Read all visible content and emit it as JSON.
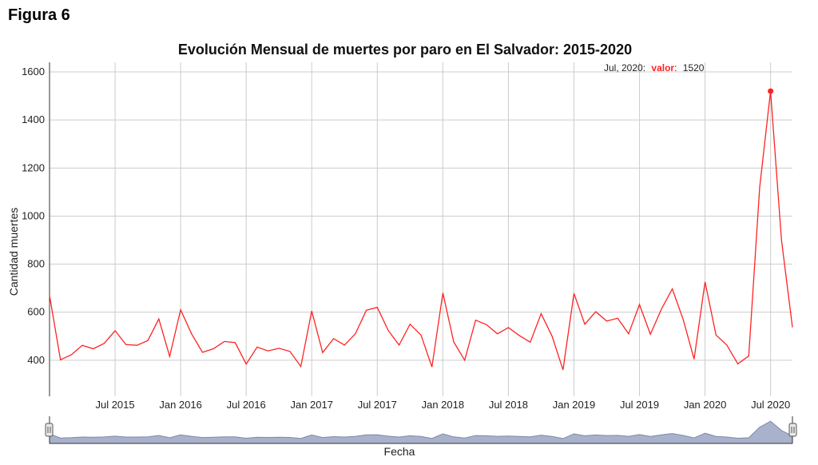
{
  "figure_label": "Figura 6",
  "chart_data": {
    "type": "line",
    "title": "Evolución Mensual de muertes por paro en El Salvador: 2015-2020",
    "xlabel": "Fecha",
    "ylabel": "Cantidad muertes",
    "ylim": [
      250,
      1640
    ],
    "yticks": [
      400,
      600,
      800,
      1000,
      1200,
      1400,
      1600
    ],
    "xlim": [
      "2015-01",
      "2020-12"
    ],
    "xticks": [
      {
        "x": "2015-07",
        "label": "Jul 2015"
      },
      {
        "x": "2016-01",
        "label": "Jan 2016"
      },
      {
        "x": "2016-07",
        "label": "Jul 2016"
      },
      {
        "x": "2017-01",
        "label": "Jan 2017"
      },
      {
        "x": "2017-07",
        "label": "Jul 2017"
      },
      {
        "x": "2018-01",
        "label": "Jan 2018"
      },
      {
        "x": "2018-07",
        "label": "Jul 2018"
      },
      {
        "x": "2019-01",
        "label": "Jan 2019"
      },
      {
        "x": "2019-07",
        "label": "Jul 2019"
      },
      {
        "x": "2020-01",
        "label": "Jan 2020"
      },
      {
        "x": "2020-07",
        "label": "Jul 2020"
      }
    ],
    "grid": true,
    "line_color": "#ff2222",
    "range_selector": true,
    "tooltip": {
      "x": "Jul, 2020",
      "x_label": "Jul, 2020:",
      "series_label": "valor",
      "separator": ":",
      "value": "1520"
    },
    "highlight_index": 66,
    "series": [
      {
        "name": "valor",
        "x": [
          "2015-01",
          "2015-02",
          "2015-03",
          "2015-04",
          "2015-05",
          "2015-06",
          "2015-07",
          "2015-08",
          "2015-09",
          "2015-10",
          "2015-11",
          "2015-12",
          "2016-01",
          "2016-02",
          "2016-03",
          "2016-04",
          "2016-05",
          "2016-06",
          "2016-07",
          "2016-08",
          "2016-09",
          "2016-10",
          "2016-11",
          "2016-12",
          "2017-01",
          "2017-02",
          "2017-03",
          "2017-04",
          "2017-05",
          "2017-06",
          "2017-07",
          "2017-08",
          "2017-09",
          "2017-10",
          "2017-11",
          "2017-12",
          "2018-01",
          "2018-02",
          "2018-03",
          "2018-04",
          "2018-05",
          "2018-06",
          "2018-07",
          "2018-08",
          "2018-09",
          "2018-10",
          "2018-11",
          "2018-12",
          "2019-01",
          "2019-02",
          "2019-03",
          "2019-04",
          "2019-05",
          "2019-06",
          "2019-07",
          "2019-08",
          "2019-09",
          "2019-10",
          "2019-11",
          "2019-12",
          "2020-01",
          "2020-02",
          "2020-03",
          "2020-04",
          "2020-05",
          "2020-06",
          "2020-07",
          "2020-08",
          "2020-09"
        ],
        "values": [
          670,
          402,
          423,
          462,
          448,
          470,
          523,
          465,
          462,
          482,
          572,
          416,
          610,
          510,
          433,
          448,
          478,
          473,
          384,
          455,
          439,
          450,
          437,
          374,
          605,
          432,
          490,
          463,
          510,
          608,
          620,
          524,
          463,
          550,
          505,
          372,
          680,
          476,
          400,
          567,
          548,
          510,
          536,
          503,
          475,
          594,
          500,
          360,
          678,
          550,
          602,
          563,
          575,
          510,
          632,
          508,
          612,
          697,
          570,
          405,
          726,
          505,
          463,
          385,
          418,
          1120,
          1520,
          900,
          537
        ]
      }
    ]
  }
}
